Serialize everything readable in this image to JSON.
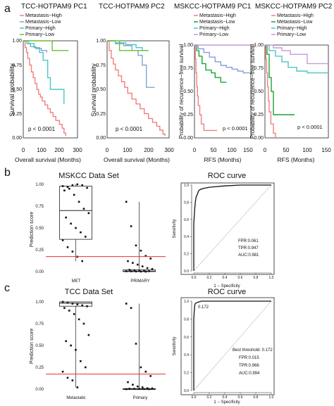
{
  "panel_labels": {
    "a": "a",
    "b": "b",
    "c": "c"
  },
  "colors": {
    "met_high": "#f08080",
    "met_low": "#7fa6cf",
    "prim_high": "#4cc5c5",
    "prim_low": "#6abf2e",
    "met_low_ms": "#19a33a",
    "prim_high_ms": "#8a9dd8",
    "prim_low_ms": "#c49bd8",
    "red_line": "#e8302c",
    "roc_line": "#111111"
  },
  "chart_data": [
    {
      "type": "line",
      "subtype": "kaplan-meier",
      "title": "TCC-HOTPAM9  PC1",
      "xlabel": "Overall survival (Months)",
      "ylabel": "Survival probability",
      "xlim": [
        0,
        300
      ],
      "ylim": [
        0,
        1
      ],
      "xticks": [
        "0",
        "100",
        "200",
        "300"
      ],
      "yticks": [
        "0.00",
        "0.25",
        "0.50",
        "0.75",
        "1.00"
      ],
      "pvalue": "p < 0.0001",
      "legend": [
        "Metastasis−High",
        "Metastasis−Low",
        "Primary−High",
        "Primary−Low"
      ],
      "series": [
        {
          "name": "Metastasis−High",
          "color": "#f08080",
          "x": [
            0,
            10,
            18,
            25,
            35,
            45,
            55,
            65,
            75,
            85,
            95,
            105,
            120,
            135,
            150,
            165,
            180,
            200,
            215,
            225,
            235
          ],
          "y": [
            1,
            0.93,
            0.88,
            0.82,
            0.75,
            0.68,
            0.62,
            0.56,
            0.5,
            0.45,
            0.42,
            0.38,
            0.34,
            0.3,
            0.26,
            0.22,
            0.18,
            0.14,
            0.1,
            0.05,
            0.02
          ]
        },
        {
          "name": "Metastasis−Low",
          "color": "#7fa6cf",
          "x": [
            0,
            20,
            40,
            70,
            100,
            130
          ],
          "y": [
            1,
            0.97,
            0.94,
            0.92,
            0.9,
            0.88
          ]
        },
        {
          "name": "Primary−High",
          "color": "#4cc5c5",
          "x": [
            0,
            30,
            60,
            90,
            110,
            135,
            150,
            185,
            225
          ],
          "y": [
            1,
            0.97,
            0.93,
            0.88,
            0.8,
            0.62,
            0.5,
            0.5,
            0.35
          ]
        },
        {
          "name": "Primary−Low",
          "color": "#6abf2e",
          "x": [
            0,
            130,
            160,
            250
          ],
          "y": [
            1,
            1,
            0.9,
            0.9
          ]
        }
      ]
    },
    {
      "type": "line",
      "subtype": "kaplan-meier",
      "title": "TCC-HOTPAM9  PC2",
      "xlabel": "Overall survival (Months)",
      "ylabel": "Survival probability",
      "xlim": [
        0,
        300
      ],
      "ylim": [
        0,
        1
      ],
      "xticks": [
        "0",
        "100",
        "200",
        "300"
      ],
      "yticks": [
        "0.00",
        "0.25",
        "0.50",
        "0.75",
        "1.00"
      ],
      "pvalue": "p < 0.0001",
      "series": [
        {
          "name": "Metastasis−High",
          "color": "#f08080",
          "x": [
            0,
            10,
            20,
            30,
            40,
            55,
            70,
            85,
            100,
            120,
            140,
            160,
            180,
            200,
            220,
            240,
            255,
            270,
            280
          ],
          "y": [
            1,
            0.9,
            0.82,
            0.76,
            0.7,
            0.64,
            0.58,
            0.52,
            0.46,
            0.4,
            0.35,
            0.3,
            0.25,
            0.2,
            0.16,
            0.12,
            0.08,
            0.04,
            0.02
          ]
        },
        {
          "name": "Metastasis−Low",
          "color": "#7fa6cf",
          "x": [
            0,
            40,
            80,
            120,
            150,
            170,
            190,
            230
          ],
          "y": [
            1,
            0.97,
            0.95,
            0.9,
            0.85,
            0.75,
            0.52,
            0.52
          ]
        },
        {
          "name": "Primary−High",
          "color": "#4cc5c5",
          "x": [
            0,
            40,
            90,
            140,
            170,
            200
          ],
          "y": [
            1,
            0.98,
            0.96,
            0.93,
            0.9,
            0.9
          ]
        },
        {
          "name": "Primary−Low",
          "color": "#6abf2e",
          "x": [
            0,
            40,
            60,
            200
          ],
          "y": [
            1,
            1,
            0.9,
            0.9
          ]
        }
      ]
    },
    {
      "type": "line",
      "subtype": "kaplan-meier",
      "title": "MSKCC-HOTPAM9  PC1",
      "xlabel": "RFS (Months)",
      "ylabel": "Probability of recurrence−free survival",
      "xlim": [
        0,
        150
      ],
      "ylim": [
        0,
        1
      ],
      "xticks": [
        "0",
        "50",
        "100",
        "150"
      ],
      "yticks": [
        "0.00",
        "0.25",
        "0.50",
        "0.75",
        "1.00"
      ],
      "pvalue": "p < 0.0001",
      "legend": [
        "Metastasis−High",
        "Metastasis−Low",
        "Primary−High",
        "Primary−Low"
      ],
      "series": [
        {
          "name": "Metastasis−High",
          "color": "#f08080",
          "x": [
            0,
            2,
            4,
            6,
            8,
            10,
            14,
            18,
            25,
            35,
            45,
            60
          ],
          "y": [
            1,
            0.85,
            0.7,
            0.55,
            0.45,
            0.35,
            0.25,
            0.15,
            0.08,
            0.08,
            0.08,
            0.08
          ]
        },
        {
          "name": "Metastasis−Low",
          "color": "#19a33a",
          "x": [
            0,
            6,
            12,
            20,
            30,
            45,
            55,
            70,
            85
          ],
          "y": [
            1,
            0.94,
            0.88,
            0.8,
            0.73,
            0.7,
            0.65,
            0.6,
            0.6
          ]
        },
        {
          "name": "Primary−High",
          "color": "#8a9dd8",
          "x": [
            0,
            10,
            25,
            40,
            55,
            70,
            85,
            100,
            115,
            130,
            150
          ],
          "y": [
            1,
            0.96,
            0.92,
            0.87,
            0.82,
            0.78,
            0.76,
            0.74,
            0.72,
            0.7,
            0.7
          ]
        },
        {
          "name": "Primary−Low",
          "color": "#c49bd8",
          "x": [
            0,
            30,
            60,
            100,
            150
          ],
          "y": [
            1,
            1,
            1,
            1,
            1
          ]
        }
      ]
    },
    {
      "type": "line",
      "subtype": "kaplan-meier",
      "title": "MSKCC-HOTPAM9  PC2",
      "xlabel": "RFS (Months)",
      "ylabel": "Probability of recurrence−free survival",
      "xlim": [
        0,
        150
      ],
      "ylim": [
        0,
        1
      ],
      "xticks": [
        "0",
        "50",
        "100",
        "150"
      ],
      "yticks": [
        "0.00",
        "0.25",
        "0.50",
        "0.75",
        "1.00"
      ],
      "pvalue": "p < 0.0001",
      "legend": [
        "Metastasis−High",
        "Metastasis−Low",
        "Primary−High",
        "Primary−Low"
      ],
      "series": [
        {
          "name": "Metastasis−High",
          "color": "#f08080",
          "x": [
            0,
            2,
            4,
            6,
            8,
            10,
            14,
            20,
            25
          ],
          "y": [
            1,
            0.85,
            0.7,
            0.55,
            0.4,
            0.28,
            0.15,
            0.05,
            0
          ]
        },
        {
          "name": "Metastasis−Low",
          "color": "#19a33a",
          "x": [
            0,
            5,
            10,
            15,
            20,
            70
          ],
          "y": [
            1,
            0.9,
            0.65,
            0.5,
            0.25,
            0.25
          ]
        },
        {
          "name": "Primary−High",
          "color": "#4cc5c5",
          "x": [
            0,
            10,
            25,
            40,
            55,
            75,
            100,
            125,
            150
          ],
          "y": [
            1,
            0.94,
            0.88,
            0.82,
            0.76,
            0.72,
            0.7,
            0.7,
            0.7
          ]
        },
        {
          "name": "Primary−Low",
          "color": "#c49bd8",
          "x": [
            0,
            20,
            40,
            60,
            100,
            150
          ],
          "y": [
            1,
            0.97,
            0.94,
            0.9,
            0.8,
            0.8
          ]
        }
      ]
    },
    {
      "type": "scatter",
      "subtype": "boxplot",
      "title": "MSKCC Data Set",
      "ylabel": "Prediction score",
      "categories": [
        "MET",
        "PRIMARY"
      ],
      "ylim": [
        0,
        1
      ],
      "yticks": [
        "0.00",
        "0.25",
        "0.50",
        "0.75",
        "1.00"
      ],
      "threshold": 0.172,
      "boxes": [
        {
          "q1": 0.37,
          "median": 0.7,
          "q3": 0.98,
          "min": 0.12,
          "max": 1.0
        },
        {
          "q1": 0.0,
          "median": 0.005,
          "q3": 0.02,
          "min": 0.0,
          "max": 0.8
        }
      ],
      "points": [
        {
          "group": 0,
          "y": [
            0.98,
            0.97,
            0.99,
            1.0,
            0.99,
            0.96,
            0.93,
            0.95,
            0.88,
            0.8,
            0.72,
            0.67,
            0.62,
            0.55,
            0.5,
            0.45,
            0.4,
            0.36,
            0.28,
            0.23,
            0.17,
            0.12
          ]
        },
        {
          "group": 1,
          "y": [
            0.8,
            0.52,
            0.3,
            0.24,
            0.18,
            0.15,
            0.12,
            0.1,
            0.08,
            0.06,
            0.04,
            0.03,
            0.02,
            0.015,
            0.01,
            0.008,
            0.005,
            0.004,
            0.003,
            0.002,
            0.001,
            0.0
          ]
        }
      ]
    },
    {
      "type": "line",
      "subtype": "roc",
      "title": "ROC curve",
      "xlabel": "1 − Specificity",
      "ylabel": "Sensitivity",
      "xlim": [
        0,
        1
      ],
      "ylim": [
        0,
        1
      ],
      "xticks": [
        "0.0",
        "0.2",
        "0.4",
        "0.6",
        "0.8",
        "1.0"
      ],
      "yticks": [
        "0.0",
        "0.2",
        "0.4",
        "0.6",
        "0.8",
        "1.0"
      ],
      "x": [
        0,
        0,
        0.01,
        0.02,
        0.03,
        0.05,
        0.06,
        0.08,
        0.12,
        0.2,
        0.4,
        0.6,
        1.0
      ],
      "y": [
        0,
        0.55,
        0.7,
        0.8,
        0.86,
        0.9,
        0.93,
        0.947,
        0.96,
        0.975,
        0.99,
        1.0,
        1.0
      ],
      "annotations": [
        "FPR:0.061",
        "TPR:0.947",
        "AUC:0.981"
      ]
    },
    {
      "type": "scatter",
      "subtype": "boxplot",
      "title": "TCC Data Set",
      "ylabel": "Prediction score",
      "categories": [
        "Metastatic",
        "Primary"
      ],
      "ylim": [
        0,
        1
      ],
      "yticks": [
        "0.00",
        "0.25",
        "0.50",
        "0.75",
        "1.00"
      ],
      "threshold": 0.172,
      "boxes": [
        {
          "q1": 0.95,
          "median": 0.985,
          "q3": 1.0,
          "min": 0.02,
          "max": 1.0
        },
        {
          "q1": 0.0,
          "median": 0.001,
          "q3": 0.005,
          "min": 0.0,
          "max": 0.98
        }
      ],
      "points": [
        {
          "group": 0,
          "y": [
            1.0,
            0.99,
            0.98,
            0.97,
            0.96,
            0.95,
            0.93,
            0.9,
            0.86,
            0.8,
            0.75,
            0.62,
            0.55,
            0.5,
            0.45,
            0.32,
            0.25,
            0.2,
            0.13,
            0.1,
            0.02
          ]
        },
        {
          "group": 1,
          "y": [
            0.98,
            0.93,
            0.52,
            0.25,
            0.2,
            0.15,
            0.08,
            0.05,
            0.03,
            0.02,
            0.01,
            0.008,
            0.005,
            0.003,
            0.002,
            0.001,
            0.0,
            0.0
          ]
        }
      ]
    },
    {
      "type": "line",
      "subtype": "roc",
      "title": "ROC curve",
      "xlabel": "1 − Specificity",
      "ylabel": "Sensitivity",
      "xlim": [
        0,
        1
      ],
      "ylim": [
        0,
        1
      ],
      "xticks": [
        "0.0",
        "0.2",
        "0.4",
        "0.6",
        "0.8",
        "1.0"
      ],
      "yticks": [
        "0.0",
        "0.2",
        "0.4",
        "0.6",
        "0.8",
        "1.0"
      ],
      "x": [
        0,
        0,
        0.005,
        0.01,
        0.015,
        0.03,
        0.06,
        0.1,
        0.3,
        0.6,
        1.0
      ],
      "y": [
        0,
        0.8,
        0.88,
        0.93,
        0.966,
        0.98,
        0.99,
        1.0,
        1.0,
        1.0,
        1.0
      ],
      "annotations": [
        "0.172",
        "Best threshold: 0.172",
        "FPR:0.015",
        "TPR:0.966",
        "AUC:0.994"
      ]
    }
  ]
}
